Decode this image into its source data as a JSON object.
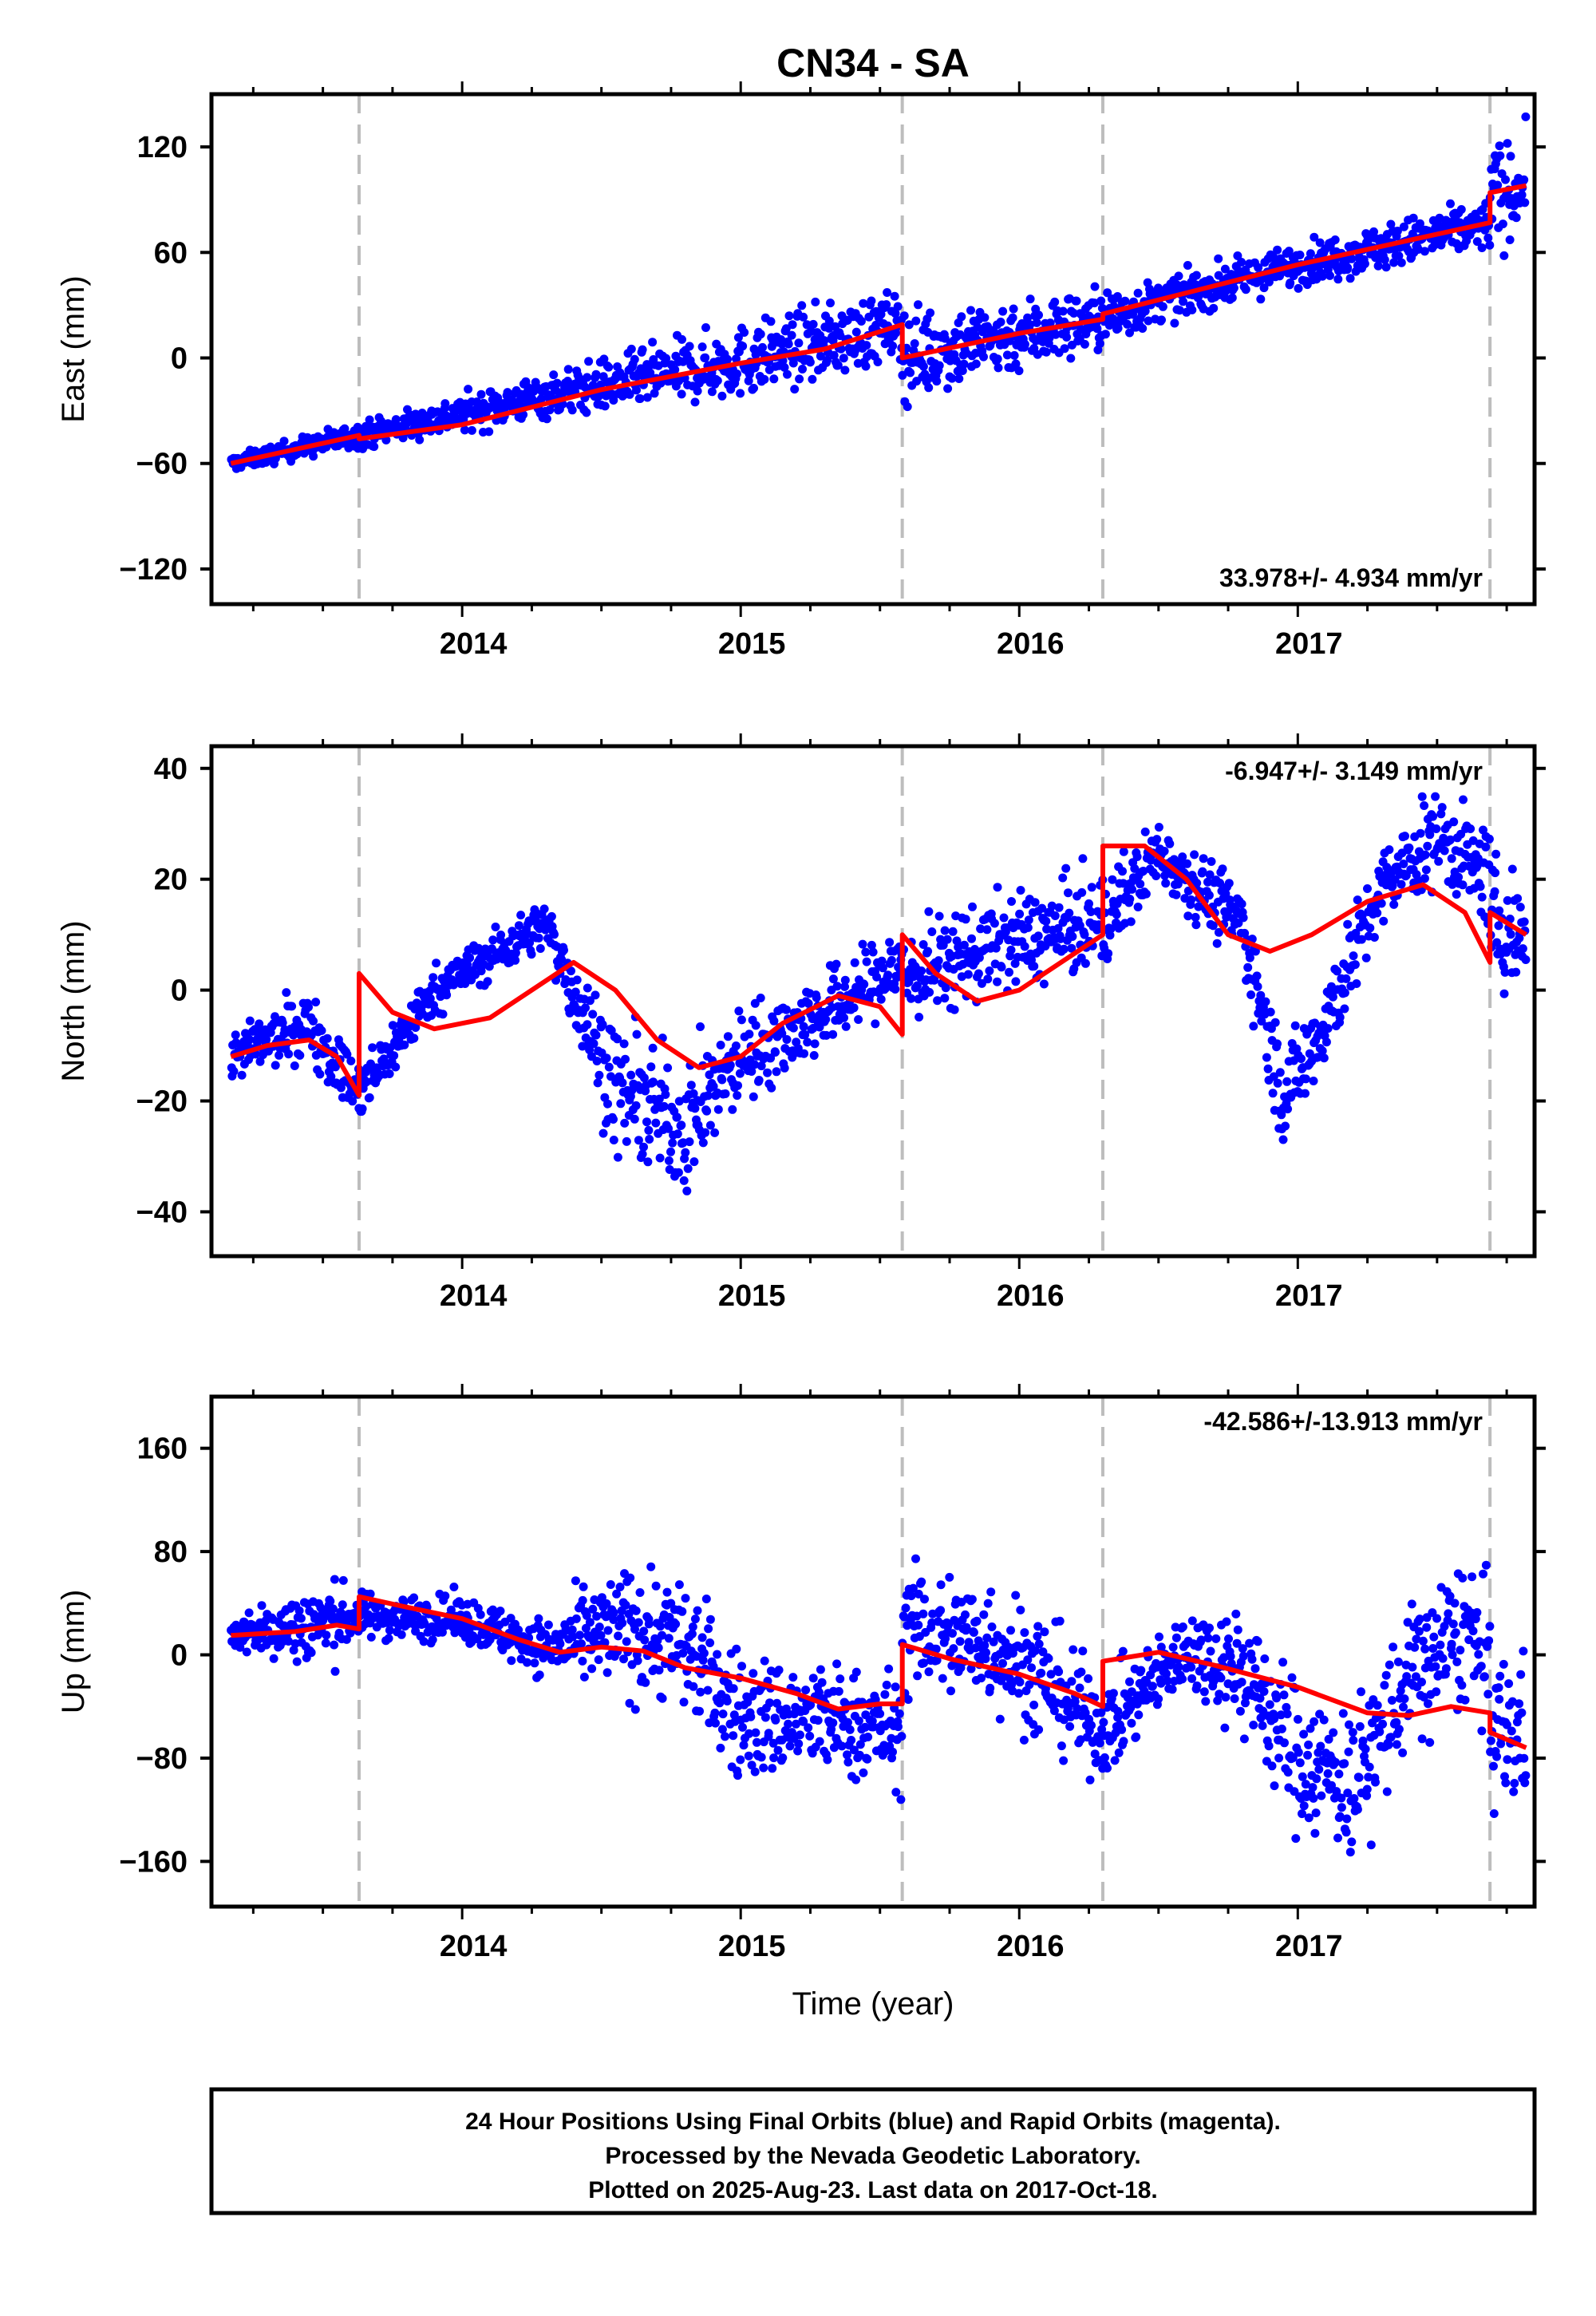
{
  "title": "CN34 - SA",
  "chart_data": [
    {
      "type": "scatter",
      "id": "east",
      "ylabel": "East (mm)",
      "xlabel": "",
      "xlim": [
        2013.1,
        2017.85
      ],
      "ylim": [
        -140,
        150
      ],
      "yticks": [
        -120,
        -60,
        0,
        60,
        120
      ],
      "ytick_labels": [
        "−120",
        "−60",
        "0",
        "60",
        "120"
      ],
      "xticks": [
        2014,
        2015,
        2016,
        2017
      ],
      "xtick_labels": [
        "2014",
        "2015",
        "2016",
        "2017"
      ],
      "rate_text": "33.978+/- 4.934 mm/yr",
      "rate_position": "bottom-right",
      "step_lines": [
        2013.63,
        2015.58,
        2016.3,
        2017.69
      ],
      "grid": false,
      "series": [
        {
          "color": "#0000ff",
          "trend": [
            [
              2013.17,
              -60
            ],
            [
              2013.63,
              -44
            ],
            [
              2014.35,
              -20
            ],
            [
              2015.0,
              -2
            ],
            [
              2015.58,
              19
            ]
          ],
          "noise": [
            3,
            5,
            9,
            14,
            14
          ]
        },
        {
          "color": "#0000ff",
          "trend": [
            [
              2015.58,
              1
            ],
            [
              2016.3,
              22
            ],
            [
              2016.5,
              32
            ],
            [
              2017.0,
              53
            ],
            [
              2017.69,
              76
            ]
          ],
          "noise": [
            18,
            12,
            8,
            8,
            10
          ]
        },
        {
          "color": "#0000ff",
          "trend": [
            [
              2017.69,
              92
            ],
            [
              2017.82,
              98
            ]
          ],
          "noise": [
            20,
            20
          ]
        }
      ],
      "model": {
        "color": "#ff0000",
        "points": [
          [
            2013.17,
            -60
          ],
          [
            2013.63,
            -44
          ],
          [
            2013.63,
            -46
          ],
          [
            2014.0,
            -38
          ],
          [
            2014.5,
            -18
          ],
          [
            2015.0,
            -3
          ],
          [
            2015.3,
            5
          ],
          [
            2015.58,
            19
          ],
          [
            2015.58,
            0
          ],
          [
            2016.0,
            14
          ],
          [
            2016.3,
            22
          ],
          [
            2016.3,
            25
          ],
          [
            2016.6,
            37
          ],
          [
            2017.0,
            53
          ],
          [
            2017.69,
            77
          ],
          [
            2017.69,
            94
          ],
          [
            2017.82,
            98
          ]
        ]
      }
    },
    {
      "type": "scatter",
      "id": "north",
      "ylabel": "North (mm)",
      "xlabel": "",
      "xlim": [
        2013.1,
        2017.85
      ],
      "ylim": [
        -48,
        44
      ],
      "yticks": [
        -40,
        -20,
        0,
        20,
        40
      ],
      "ytick_labels": [
        "−40",
        "−20",
        "0",
        "20",
        "40"
      ],
      "xticks": [
        2014,
        2015,
        2016,
        2017
      ],
      "xtick_labels": [
        "2014",
        "2015",
        "2016",
        "2017"
      ],
      "rate_text": "-6.947+/- 3.149 mm/yr",
      "rate_position": "top-right",
      "step_lines": [
        2013.63,
        2015.58,
        2016.3,
        2017.69
      ],
      "grid": false,
      "series": [
        {
          "color": "#0000ff",
          "trend": [
            [
              2013.17,
              -12
            ],
            [
              2013.45,
              -6
            ],
            [
              2013.63,
              -19
            ],
            [
              2013.9,
              0
            ],
            [
              2014.3,
              12
            ],
            [
              2014.55,
              -18
            ],
            [
              2014.8,
              -25
            ],
            [
              2015.0,
              -12
            ],
            [
              2015.3,
              -4
            ],
            [
              2015.58,
              5
            ]
          ],
          "noise": [
            3,
            4,
            4,
            3,
            3,
            8,
            8,
            6,
            5,
            5
          ]
        },
        {
          "color": "#0000ff",
          "trend": [
            [
              2015.58,
              2
            ],
            [
              2015.9,
              8
            ],
            [
              2016.3,
              12
            ],
            [
              2016.5,
              25
            ],
            [
              2016.8,
              12
            ],
            [
              2016.95,
              -20
            ],
            [
              2017.1,
              -5
            ],
            [
              2017.3,
              18
            ],
            [
              2017.5,
              28
            ],
            [
              2017.69,
              20
            ]
          ],
          "noise": [
            6,
            6,
            6,
            4,
            5,
            6,
            6,
            5,
            6,
            6
          ]
        },
        {
          "color": "#0000ff",
          "trend": [
            [
              2017.69,
              12
            ],
            [
              2017.82,
              10
            ]
          ],
          "noise": [
            8,
            8
          ]
        }
      ],
      "model": {
        "color": "#ff0000",
        "points": [
          [
            2013.17,
            -12
          ],
          [
            2013.3,
            -10
          ],
          [
            2013.45,
            -9
          ],
          [
            2013.55,
            -12
          ],
          [
            2013.63,
            -19
          ],
          [
            2013.63,
            3
          ],
          [
            2013.75,
            -4
          ],
          [
            2013.9,
            -7
          ],
          [
            2014.1,
            -5
          ],
          [
            2014.25,
            0
          ],
          [
            2014.4,
            5
          ],
          [
            2014.55,
            0
          ],
          [
            2014.7,
            -9
          ],
          [
            2014.85,
            -14
          ],
          [
            2015.0,
            -12
          ],
          [
            2015.15,
            -6
          ],
          [
            2015.35,
            -1
          ],
          [
            2015.5,
            -3
          ],
          [
            2015.58,
            -8
          ],
          [
            2015.58,
            10
          ],
          [
            2015.7,
            3
          ],
          [
            2015.85,
            -2
          ],
          [
            2016.0,
            0
          ],
          [
            2016.15,
            5
          ],
          [
            2016.3,
            10
          ],
          [
            2016.3,
            26
          ],
          [
            2016.45,
            26
          ],
          [
            2016.6,
            20
          ],
          [
            2016.75,
            10
          ],
          [
            2016.9,
            7
          ],
          [
            2017.05,
            10
          ],
          [
            2017.25,
            16
          ],
          [
            2017.45,
            19
          ],
          [
            2017.6,
            14
          ],
          [
            2017.69,
            5
          ],
          [
            2017.69,
            14
          ],
          [
            2017.82,
            10
          ]
        ]
      }
    },
    {
      "type": "scatter",
      "id": "up",
      "ylabel": "Up (mm)",
      "xlabel": "Time (year)",
      "xlim": [
        2013.1,
        2017.85
      ],
      "ylim": [
        -195,
        200
      ],
      "yticks": [
        -160,
        -80,
        0,
        80,
        160
      ],
      "ytick_labels": [
        "−160",
        "−80",
        "0",
        "80",
        "160"
      ],
      "xticks": [
        2014,
        2015,
        2016,
        2017
      ],
      "xtick_labels": [
        "2014",
        "2015",
        "2016",
        "2017"
      ],
      "rate_text": "-42.586+/-13.913 mm/yr",
      "rate_position": "top-right",
      "step_lines": [
        2013.63,
        2015.58,
        2016.3,
        2017.69
      ],
      "grid": false,
      "series": [
        {
          "color": "#0000ff",
          "trend": [
            [
              2013.17,
              15
            ],
            [
              2013.5,
              25
            ],
            [
              2013.63,
              30
            ],
            [
              2014.0,
              28
            ],
            [
              2014.3,
              5
            ],
            [
              2014.6,
              20
            ],
            [
              2014.8,
              10
            ],
            [
              2015.0,
              -50
            ],
            [
              2015.3,
              -50
            ],
            [
              2015.58,
              -60
            ]
          ],
          "noise": [
            8,
            25,
            12,
            12,
            15,
            35,
            35,
            35,
            30,
            30
          ]
        },
        {
          "color": "#0000ff",
          "trend": [
            [
              2015.58,
              20
            ],
            [
              2015.9,
              10
            ],
            [
              2016.1,
              -20
            ],
            [
              2016.3,
              -60
            ],
            [
              2016.6,
              5
            ],
            [
              2016.8,
              -10
            ],
            [
              2017.0,
              -80
            ],
            [
              2017.2,
              -100
            ],
            [
              2017.4,
              -20
            ],
            [
              2017.6,
              20
            ],
            [
              2017.69,
              -10
            ]
          ],
          "noise": [
            35,
            35,
            35,
            25,
            20,
            35,
            40,
            40,
            40,
            40,
            40
          ]
        },
        {
          "color": "#0000ff",
          "trend": [
            [
              2017.69,
              -60
            ],
            [
              2017.82,
              -60
            ]
          ],
          "noise": [
            40,
            40
          ]
        }
      ],
      "model": {
        "color": "#ff0000",
        "points": [
          [
            2013.17,
            15
          ],
          [
            2013.4,
            18
          ],
          [
            2013.55,
            23
          ],
          [
            2013.63,
            20
          ],
          [
            2013.63,
            45
          ],
          [
            2013.8,
            37
          ],
          [
            2014.0,
            28
          ],
          [
            2014.2,
            12
          ],
          [
            2014.35,
            2
          ],
          [
            2014.5,
            6
          ],
          [
            2014.65,
            3
          ],
          [
            2014.8,
            -10
          ],
          [
            2015.0,
            -18
          ],
          [
            2015.2,
            -30
          ],
          [
            2015.35,
            -42
          ],
          [
            2015.5,
            -38
          ],
          [
            2015.58,
            -38
          ],
          [
            2015.58,
            8
          ],
          [
            2015.75,
            -3
          ],
          [
            2016.0,
            -15
          ],
          [
            2016.2,
            -30
          ],
          [
            2016.3,
            -40
          ],
          [
            2016.3,
            -5
          ],
          [
            2016.5,
            2
          ],
          [
            2016.7,
            -8
          ],
          [
            2017.0,
            -25
          ],
          [
            2017.25,
            -45
          ],
          [
            2017.4,
            -47
          ],
          [
            2017.55,
            -40
          ],
          [
            2017.69,
            -45
          ],
          [
            2017.69,
            -60
          ],
          [
            2017.82,
            -72
          ]
        ]
      }
    }
  ],
  "footer": {
    "line1": "24 Hour Positions Using Final Orbits (blue) and Rapid Orbits (magenta).",
    "line2": "Processed by the Nevada Geodetic Laboratory.",
    "line3": "Plotted on 2025-Aug-23. Last data on 2017-Oct-18."
  }
}
